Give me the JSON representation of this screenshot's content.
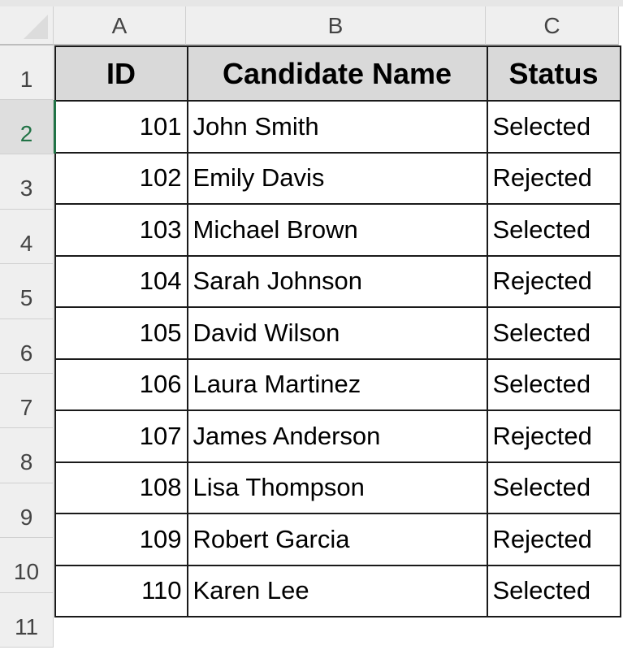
{
  "columns": [
    "A",
    "B",
    "C"
  ],
  "rows": [
    "1",
    "2",
    "3",
    "4",
    "5",
    "6",
    "7",
    "8",
    "9",
    "10",
    "11"
  ],
  "headers": [
    "ID",
    "Candidate Name",
    "Status"
  ],
  "data": [
    [
      "101",
      "John Smith",
      "Selected"
    ],
    [
      "102",
      "Emily Davis",
      "Rejected"
    ],
    [
      "103",
      "Michael Brown",
      "Selected"
    ],
    [
      "104",
      "Sarah Johnson",
      "Rejected"
    ],
    [
      "105",
      "David Wilson",
      "Selected"
    ],
    [
      "106",
      "Laura Martinez",
      "Selected"
    ],
    [
      "107",
      "James Anderson",
      "Rejected"
    ],
    [
      "108",
      "Lisa Thompson",
      "Selected"
    ],
    [
      "109",
      "Robert Garcia",
      "Rejected"
    ],
    [
      "110",
      "Karen Lee",
      "Selected"
    ]
  ],
  "active_cell": "A2",
  "colors": {
    "header_fill": "#d9d9d9",
    "selection": "#217346"
  }
}
